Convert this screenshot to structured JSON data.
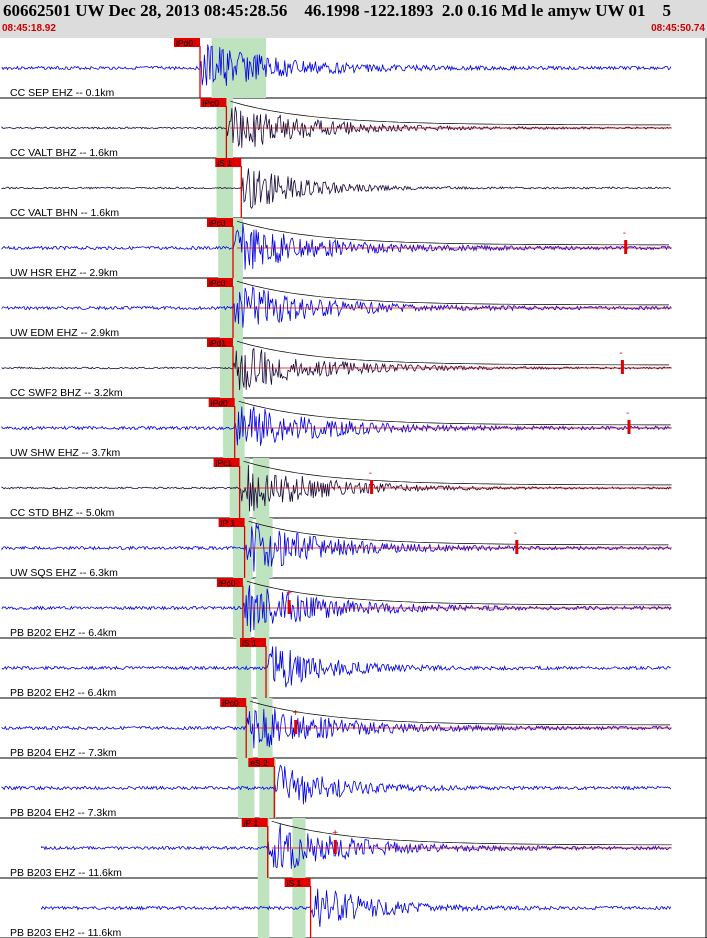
{
  "header": {
    "title": "60662501 UW Dec 28, 2013 08:45:28.56    46.1998 -122.1893  2.0 0.16 Md le amyw UW 01    5",
    "time_start": "08:45:18.92",
    "time_end": "08:45:50.74"
  },
  "colors": {
    "header_bg": "#dcdcdc",
    "time_label": "#d00000",
    "trace_blue": "#0000e6",
    "trace_dark": "#1a0a3a",
    "pick": "#e00000",
    "window": "#bfe3bf"
  },
  "traces": [
    {
      "label": "CC SEP EHZ -- 0.1km",
      "color": "blue",
      "pick_label": "iPd0",
      "pick_type": "P",
      "pick_sec": 6.0,
      "start_sec": 0.0,
      "windows": [
        [
          6.35,
          8.0
        ]
      ],
      "envelope": false,
      "coda_mark_sec": null,
      "coda_mark": ""
    },
    {
      "label": "CC VALT BHZ -- 1.6km",
      "color": "dark",
      "pick_label": "iPc0",
      "pick_type": "P",
      "pick_sec": 6.8,
      "start_sec": 0.0,
      "windows": [
        [
          6.5,
          7.0
        ]
      ],
      "envelope": true,
      "coda_mark_sec": null,
      "coda_mark": ""
    },
    {
      "label": "CC VALT BHN -- 1.6km",
      "color": "dark",
      "pick_label": "iS 1",
      "pick_type": "S",
      "pick_sec": 7.25,
      "start_sec": 0.0,
      "windows": [
        [
          6.5,
          7.0
        ]
      ],
      "envelope": false,
      "coda_mark_sec": null,
      "coda_mark": ""
    },
    {
      "label": "UW HSR EHZ -- 2.9km",
      "color": "blue",
      "pick_label": "iPc0",
      "pick_type": "P",
      "pick_sec": 7.0,
      "start_sec": 0.0,
      "windows": [
        [
          6.55,
          7.3
        ]
      ],
      "envelope": true,
      "coda_mark_sec": 18.9,
      "coda_mark": "-"
    },
    {
      "label": "UW EDM EHZ -- 2.9km",
      "color": "blue",
      "pick_label": "iPc0",
      "pick_type": "P",
      "pick_sec": 7.0,
      "start_sec": 0.0,
      "windows": [
        [
          6.6,
          7.3
        ]
      ],
      "envelope": true,
      "coda_mark_sec": null,
      "coda_mark": ""
    },
    {
      "label": "CC SWF2 BHZ -- 3.2km",
      "color": "dark",
      "pick_label": "iPd1",
      "pick_type": "P",
      "pick_sec": 7.0,
      "start_sec": 0.0,
      "windows": [
        [
          6.6,
          7.3
        ]
      ],
      "envelope": true,
      "coda_mark_sec": 18.8,
      "coda_mark": "-"
    },
    {
      "label": "UW SHW EHZ -- 3.7km",
      "color": "blue",
      "pick_label": "iPd0",
      "pick_type": "P",
      "pick_sec": 7.05,
      "start_sec": 0.0,
      "windows": [
        [
          6.7,
          7.35
        ]
      ],
      "envelope": true,
      "coda_mark_sec": 19.0,
      "coda_mark": "-"
    },
    {
      "label": "CC STD BHZ -- 5.0km",
      "color": "dark",
      "pick_label": "iPc1",
      "pick_type": "P",
      "pick_sec": 7.2,
      "start_sec": 0.0,
      "windows": [
        [
          6.9,
          7.5
        ],
        [
          7.6,
          8.1
        ]
      ],
      "envelope": true,
      "coda_mark_sec": 11.2,
      "coda_mark": "-"
    },
    {
      "label": "UW SQS EHZ -- 6.3km",
      "color": "blue",
      "pick_label": "iP 1",
      "pick_type": "P",
      "pick_sec": 7.35,
      "start_sec": 0.0,
      "windows": [
        [
          7.0,
          7.6
        ],
        [
          7.7,
          8.2
        ]
      ],
      "envelope": true,
      "coda_mark_sec": 15.6,
      "coda_mark": "-"
    },
    {
      "label": "PB B202 EHZ -- 6.4km",
      "color": "blue",
      "pick_label": "iPc0",
      "pick_type": "P",
      "pick_sec": 7.3,
      "start_sec": 0.0,
      "windows": [
        [
          7.0,
          7.55
        ],
        [
          7.65,
          8.1
        ]
      ],
      "envelope": true,
      "coda_mark_sec": 8.7,
      "coda_mark": "+"
    },
    {
      "label": "PB B202 EH2 -- 6.4km",
      "color": "blue",
      "pick_label": "iS 1",
      "pick_type": "S",
      "pick_sec": 8.0,
      "start_sec": 0.0,
      "windows": [
        [
          7.1,
          7.55
        ],
        [
          7.7,
          8.1
        ]
      ],
      "envelope": false,
      "coda_mark_sec": null,
      "coda_mark": ""
    },
    {
      "label": "PB B204 EHZ -- 7.3km",
      "color": "blue",
      "pick_label": "iPc0",
      "pick_type": "P",
      "pick_sec": 7.4,
      "start_sec": 0.0,
      "windows": [
        [
          7.1,
          7.6
        ],
        [
          7.75,
          8.2
        ]
      ],
      "envelope": true,
      "coda_mark_sec": 8.9,
      "coda_mark": "+"
    },
    {
      "label": "PB B204 EH2 -- 7.3km",
      "color": "blue",
      "pick_label": "eS 2",
      "pick_type": "S",
      "pick_sec": 8.25,
      "start_sec": 0.0,
      "windows": [
        [
          7.15,
          7.65
        ],
        [
          7.8,
          8.3
        ]
      ],
      "envelope": false,
      "coda_mark_sec": null,
      "coda_mark": ""
    },
    {
      "label": "PB B203 EHZ -- 11.6km",
      "color": "blue",
      "pick_label": "iP 1",
      "pick_type": "P",
      "pick_sec": 8.05,
      "start_sec": 1.2,
      "windows": [
        [
          7.75,
          8.1
        ],
        [
          8.8,
          9.2
        ]
      ],
      "envelope": true,
      "coda_mark_sec": 10.1,
      "coda_mark": "+"
    },
    {
      "label": "PB B203 EH2 -- 11.6km",
      "color": "blue",
      "pick_label": "iS 1",
      "pick_type": "S",
      "pick_sec": 9.35,
      "start_sec": 1.2,
      "windows": [
        [
          7.75,
          8.1
        ],
        [
          8.8,
          9.2
        ]
      ],
      "envelope": false,
      "coda_mark_sec": null,
      "coda_mark": ""
    }
  ]
}
